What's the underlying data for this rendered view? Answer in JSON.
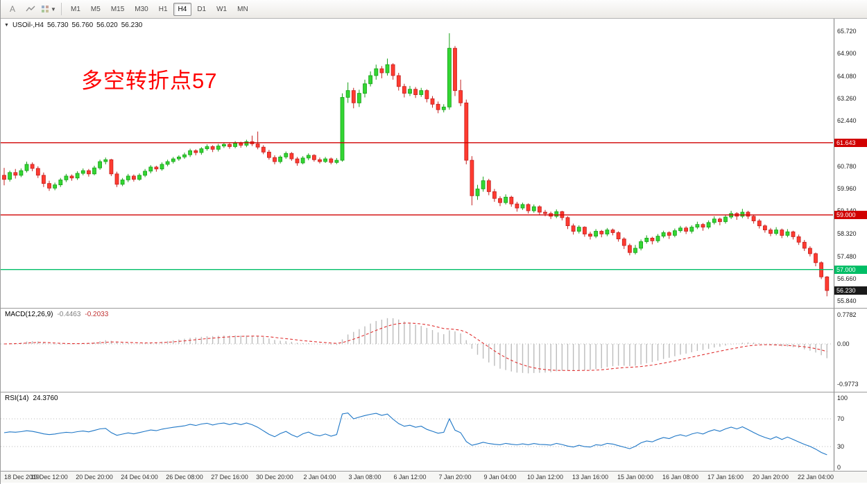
{
  "toolbar": {
    "tools": [
      {
        "label": "A"
      }
    ],
    "timeframes": [
      "M1",
      "M5",
      "M15",
      "M30",
      "H1",
      "H4",
      "D1",
      "W1",
      "MN"
    ],
    "active_timeframe": "H4"
  },
  "panels": {
    "main": {
      "symbol_label": "USOil-,H4",
      "open": "56.730",
      "high": "56.760",
      "low": "56.020",
      "close": "56.230",
      "annotation": "多空转折点57"
    },
    "macd": {
      "title": "MACD(12,26,9)",
      "value_main": "-0.4463",
      "value_signal": "-0.2033",
      "axis_ticks": [
        "0.7782",
        "0.00",
        "-0.9773"
      ]
    },
    "rsi": {
      "title": "RSI(14)",
      "value": "24.3760",
      "axis_ticks": [
        "100",
        "70",
        "30",
        "0"
      ],
      "levels": [
        70,
        30
      ]
    }
  },
  "colors": {
    "candle_up_fill": "#33d633",
    "candle_up_stroke": "#17a017",
    "candle_down_fill": "#ff3b30",
    "candle_down_stroke": "#c42020",
    "hline_red": "#d10000",
    "hline_green": "#00be66",
    "current_price_badge": "#1a1a1a",
    "macd_hist": "#bcbcbc",
    "macd_signal": "#e03030",
    "rsi_line": "#1d76c6",
    "level_dotted": "#b9b9b9"
  },
  "chart_data": {
    "type": "candlestick",
    "symbol": "USOil-",
    "timeframe": "H4",
    "price_axis_ticks": [
      "65.720",
      "64.900",
      "64.080",
      "63.260",
      "62.440",
      "61.620",
      "60.780",
      "59.960",
      "59.140",
      "58.320",
      "57.480",
      "56.660",
      "55.840"
    ],
    "time_labels": [
      "18 Dec 2019",
      "19 Dec 12:00",
      "20 Dec 20:00",
      "24 Dec 04:00",
      "26 Dec 08:00",
      "27 Dec 16:00",
      "30 Dec 20:00",
      "2 Jan 04:00",
      "3 Jan 08:00",
      "6 Jan 12:00",
      "7 Jan 20:00",
      "9 Jan 04:00",
      "10 Jan 12:00",
      "13 Jan 16:00",
      "15 Jan 00:00",
      "16 Jan 08:00",
      "17 Jan 16:00",
      "20 Jan 20:00",
      "22 Jan 04:00"
    ],
    "horizontal_lines": [
      {
        "price": 61.643,
        "label": "61.643",
        "color": "#d10000"
      },
      {
        "price": 59.0,
        "label": "59.000",
        "color": "#d10000"
      },
      {
        "price": 57.0,
        "label": "57.000",
        "color": "#00be66"
      }
    ],
    "current_price": 56.23,
    "current_price_label": "56.230",
    "indicators": {
      "macd": {
        "params": "12,26,9",
        "value": -0.4463,
        "signal": -0.2033
      },
      "rsi": {
        "params": "14",
        "value": 24.376,
        "levels": [
          70,
          30
        ]
      }
    },
    "candles": [
      [
        60.45,
        60.72,
        60.08,
        60.3
      ],
      [
        60.3,
        60.62,
        60.22,
        60.55
      ],
      [
        60.55,
        60.68,
        60.33,
        60.45
      ],
      [
        60.45,
        60.7,
        60.38,
        60.62
      ],
      [
        60.62,
        60.95,
        60.55,
        60.85
      ],
      [
        60.85,
        60.92,
        60.6,
        60.7
      ],
      [
        60.7,
        60.78,
        60.35,
        60.45
      ],
      [
        60.45,
        60.55,
        60.02,
        60.15
      ],
      [
        60.15,
        60.25,
        59.88,
        59.98
      ],
      [
        59.98,
        60.18,
        59.9,
        60.1
      ],
      [
        60.1,
        60.35,
        60.02,
        60.28
      ],
      [
        60.28,
        60.5,
        60.2,
        60.42
      ],
      [
        60.42,
        60.48,
        60.25,
        60.35
      ],
      [
        60.35,
        60.6,
        60.28,
        60.52
      ],
      [
        60.52,
        60.7,
        60.45,
        60.62
      ],
      [
        60.62,
        60.68,
        60.4,
        60.5
      ],
      [
        60.5,
        60.8,
        60.45,
        60.72
      ],
      [
        60.72,
        61.02,
        60.65,
        60.95
      ],
      [
        60.95,
        61.1,
        60.85,
        61.02
      ],
      [
        61.02,
        61.05,
        60.42,
        60.5
      ],
      [
        60.5,
        60.58,
        60.02,
        60.12
      ],
      [
        60.12,
        60.35,
        60.05,
        60.28
      ],
      [
        60.28,
        60.5,
        60.2,
        60.42
      ],
      [
        60.42,
        60.48,
        60.22,
        60.3
      ],
      [
        60.3,
        60.52,
        60.25,
        60.45
      ],
      [
        60.45,
        60.68,
        60.38,
        60.6
      ],
      [
        60.6,
        60.82,
        60.52,
        60.75
      ],
      [
        60.75,
        60.8,
        60.58,
        60.68
      ],
      [
        60.68,
        60.92,
        60.62,
        60.85
      ],
      [
        60.85,
        61.02,
        60.78,
        60.95
      ],
      [
        60.95,
        61.12,
        60.88,
        61.05
      ],
      [
        61.05,
        61.18,
        60.98,
        61.12
      ],
      [
        61.12,
        61.28,
        61.05,
        61.2
      ],
      [
        61.2,
        61.42,
        61.12,
        61.35
      ],
      [
        61.35,
        61.4,
        61.18,
        61.28
      ],
      [
        61.28,
        61.48,
        61.2,
        61.42
      ],
      [
        61.42,
        61.58,
        61.35,
        61.5
      ],
      [
        61.5,
        61.55,
        61.3,
        61.4
      ],
      [
        61.4,
        61.6,
        61.32,
        61.52
      ],
      [
        61.52,
        61.65,
        61.45,
        61.58
      ],
      [
        61.58,
        61.64,
        61.42,
        61.5
      ],
      [
        61.5,
        61.7,
        61.44,
        61.62
      ],
      [
        61.62,
        61.68,
        61.46,
        61.55
      ],
      [
        61.55,
        61.75,
        61.48,
        61.68
      ],
      [
        61.68,
        61.9,
        61.52,
        61.6
      ],
      [
        61.6,
        62.05,
        61.4,
        61.48
      ],
      [
        61.48,
        61.55,
        61.22,
        61.3
      ],
      [
        61.3,
        61.38,
        61.02,
        61.1
      ],
      [
        61.1,
        61.18,
        60.85,
        60.95
      ],
      [
        60.95,
        61.18,
        60.88,
        61.12
      ],
      [
        61.12,
        61.32,
        61.05,
        61.25
      ],
      [
        61.25,
        61.3,
        60.98,
        61.05
      ],
      [
        61.05,
        61.12,
        60.8,
        60.9
      ],
      [
        60.9,
        61.15,
        60.85,
        61.08
      ],
      [
        61.08,
        61.25,
        61.0,
        61.18
      ],
      [
        61.18,
        61.22,
        60.95,
        61.02
      ],
      [
        61.02,
        61.1,
        60.88,
        60.95
      ],
      [
        60.95,
        61.12,
        60.9,
        61.05
      ],
      [
        61.05,
        61.1,
        60.85,
        60.92
      ],
      [
        60.92,
        61.08,
        60.86,
        61.0
      ],
      [
        61.0,
        63.45,
        60.95,
        63.3
      ],
      [
        63.3,
        63.85,
        63.1,
        63.55
      ],
      [
        63.55,
        63.65,
        62.9,
        63.1
      ],
      [
        63.1,
        63.58,
        62.95,
        63.45
      ],
      [
        63.45,
        63.95,
        63.3,
        63.8
      ],
      [
        63.8,
        64.25,
        63.7,
        64.1
      ],
      [
        64.1,
        64.5,
        63.95,
        64.35
      ],
      [
        64.35,
        64.45,
        64.0,
        64.2
      ],
      [
        64.2,
        64.72,
        64.1,
        64.5
      ],
      [
        64.5,
        64.55,
        63.95,
        64.1
      ],
      [
        64.1,
        64.2,
        63.55,
        63.7
      ],
      [
        63.7,
        63.8,
        63.3,
        63.45
      ],
      [
        63.45,
        63.72,
        63.35,
        63.6
      ],
      [
        63.6,
        63.68,
        63.28,
        63.4
      ],
      [
        63.4,
        63.65,
        63.32,
        63.55
      ],
      [
        63.55,
        63.6,
        63.12,
        63.25
      ],
      [
        63.25,
        63.35,
        62.92,
        63.05
      ],
      [
        63.05,
        63.15,
        62.72,
        62.85
      ],
      [
        62.85,
        63.05,
        62.75,
        62.95
      ],
      [
        62.95,
        65.65,
        62.85,
        65.1
      ],
      [
        65.1,
        65.18,
        63.35,
        63.55
      ],
      [
        63.55,
        63.95,
        62.98,
        63.1
      ],
      [
        63.1,
        63.22,
        60.85,
        61.0
      ],
      [
        61.0,
        61.15,
        59.35,
        59.7
      ],
      [
        59.7,
        60.1,
        59.55,
        59.95
      ],
      [
        59.95,
        60.4,
        59.85,
        60.25
      ],
      [
        60.25,
        60.32,
        59.72,
        59.85
      ],
      [
        59.85,
        59.95,
        59.48,
        59.6
      ],
      [
        59.6,
        59.68,
        59.32,
        59.45
      ],
      [
        59.45,
        59.75,
        59.38,
        59.65
      ],
      [
        59.65,
        59.7,
        59.3,
        59.4
      ],
      [
        59.4,
        59.48,
        59.12,
        59.25
      ],
      [
        59.25,
        59.45,
        59.18,
        59.38
      ],
      [
        59.38,
        59.42,
        59.05,
        59.15
      ],
      [
        59.15,
        59.38,
        59.08,
        59.3
      ],
      [
        59.3,
        59.35,
        59.0,
        59.1
      ],
      [
        59.1,
        59.18,
        58.95,
        59.05
      ],
      [
        59.05,
        59.12,
        58.85,
        58.95
      ],
      [
        58.95,
        59.2,
        58.88,
        59.12
      ],
      [
        59.12,
        59.15,
        58.8,
        58.9
      ],
      [
        58.9,
        58.95,
        58.48,
        58.6
      ],
      [
        58.6,
        58.68,
        58.28,
        58.4
      ],
      [
        58.4,
        58.62,
        58.32,
        58.55
      ],
      [
        58.55,
        58.58,
        58.2,
        58.3
      ],
      [
        58.3,
        58.38,
        58.1,
        58.22
      ],
      [
        58.22,
        58.48,
        58.15,
        58.4
      ],
      [
        58.4,
        58.45,
        58.18,
        58.3
      ],
      [
        58.3,
        58.52,
        58.22,
        58.45
      ],
      [
        58.45,
        58.5,
        58.25,
        58.35
      ],
      [
        58.35,
        58.4,
        58.02,
        58.12
      ],
      [
        58.12,
        58.18,
        57.75,
        57.88
      ],
      [
        57.88,
        57.95,
        57.52,
        57.62
      ],
      [
        57.62,
        57.9,
        57.55,
        57.78
      ],
      [
        57.78,
        58.1,
        57.7,
        58.02
      ],
      [
        58.02,
        58.25,
        57.95,
        58.15
      ],
      [
        58.15,
        58.2,
        57.92,
        58.05
      ],
      [
        58.05,
        58.3,
        57.98,
        58.22
      ],
      [
        58.22,
        58.42,
        58.15,
        58.35
      ],
      [
        58.35,
        58.4,
        58.12,
        58.25
      ],
      [
        58.25,
        58.5,
        58.18,
        58.42
      ],
      [
        58.42,
        58.6,
        58.35,
        58.52
      ],
      [
        58.52,
        58.58,
        58.3,
        58.4
      ],
      [
        58.4,
        58.62,
        58.32,
        58.55
      ],
      [
        58.55,
        58.75,
        58.48,
        58.65
      ],
      [
        58.65,
        58.7,
        58.42,
        58.55
      ],
      [
        58.55,
        58.8,
        58.48,
        58.72
      ],
      [
        58.72,
        58.95,
        58.65,
        58.85
      ],
      [
        58.85,
        58.9,
        58.62,
        58.75
      ],
      [
        58.75,
        59.0,
        58.68,
        58.92
      ],
      [
        58.92,
        59.15,
        58.85,
        59.05
      ],
      [
        59.05,
        59.1,
        58.82,
        58.95
      ],
      [
        58.95,
        59.22,
        58.88,
        59.1
      ],
      [
        59.1,
        59.15,
        58.85,
        58.95
      ],
      [
        58.95,
        59.0,
        58.68,
        58.78
      ],
      [
        58.78,
        58.85,
        58.5,
        58.6
      ],
      [
        58.6,
        58.65,
        58.35,
        58.45
      ],
      [
        58.45,
        58.52,
        58.22,
        58.32
      ],
      [
        58.32,
        58.55,
        58.25,
        58.45
      ],
      [
        58.45,
        58.5,
        58.15,
        58.25
      ],
      [
        58.25,
        58.48,
        58.18,
        58.38
      ],
      [
        58.38,
        58.42,
        58.1,
        58.2
      ],
      [
        58.2,
        58.28,
        57.9,
        58.0
      ],
      [
        58.0,
        58.08,
        57.68,
        57.78
      ],
      [
        57.78,
        57.85,
        57.48,
        57.58
      ],
      [
        57.58,
        57.62,
        57.12,
        57.25
      ],
      [
        57.25,
        57.3,
        56.65,
        56.73
      ],
      [
        56.73,
        56.76,
        56.02,
        56.23
      ]
    ]
  }
}
